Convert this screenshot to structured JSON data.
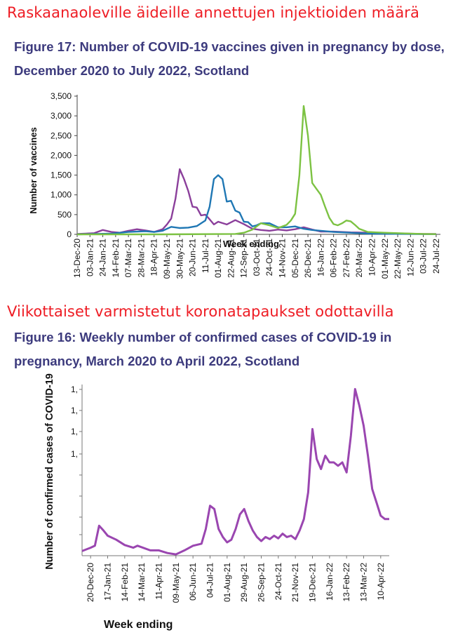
{
  "headings": {
    "top": "Raskaanaoleville äideille annettujen injektioiden määrä",
    "middle": "Viikottaiset varmistetut koronatapaukset odottavilla"
  },
  "chart_data": [
    {
      "type": "line",
      "title": "Figure 17: Number of COVID-19 vaccines given in pregnancy by dose, December 2020 to July 2022, Scotland",
      "xlabel": "Week ending",
      "ylabel": "Number of vaccines",
      "ylim": [
        0,
        3500
      ],
      "yticks": [
        "0",
        "500",
        "1,000",
        "1,500",
        "2,000",
        "2,500",
        "3,000",
        "3,500"
      ],
      "xlim": [
        "2020-12-13",
        "2022-07-31"
      ],
      "categories": [
        "13-Dec-20",
        "03-Jan-21",
        "24-Jan-21",
        "14-Feb-21",
        "07-Mar-21",
        "28-Mar-21",
        "18-Apr-21",
        "09-May-21",
        "30-May-21",
        "20-Jun-21",
        "11-Jul-21",
        "01-Aug-21",
        "22-Aug-21",
        "12-Sep-21",
        "03-Oct-21",
        "24-Oct-21",
        "14-Nov-21",
        "05-Dec-21",
        "26-Dec-21",
        "16-Jan-22",
        "06-Feb-22",
        "27-Feb-22",
        "20-Mar-22",
        "10-Apr-22",
        "01-May-22",
        "22-May-22",
        "12-Jun-22",
        "03-Jul-22",
        "24-Jul-22"
      ],
      "grid": false,
      "series": [
        {
          "color": "#8b3f9b",
          "x": [
            "2020-12-13",
            "2020-12-27",
            "2021-01-10",
            "2021-01-24",
            "2021-02-07",
            "2021-02-21",
            "2021-03-07",
            "2021-03-21",
            "2021-04-04",
            "2021-04-18",
            "2021-05-02",
            "2021-05-09",
            "2021-05-16",
            "2021-05-23",
            "2021-05-30",
            "2021-06-06",
            "2021-06-13",
            "2021-06-20",
            "2021-06-27",
            "2021-07-04",
            "2021-07-11",
            "2021-07-18",
            "2021-07-25",
            "2021-08-01",
            "2021-08-15",
            "2021-08-29",
            "2021-09-12",
            "2021-09-26",
            "2021-10-10",
            "2021-10-24",
            "2021-11-07",
            "2021-11-21",
            "2021-12-05",
            "2021-12-19",
            "2022-01-02",
            "2022-01-16",
            "2022-02-06",
            "2022-03-06",
            "2022-04-03",
            "2022-05-01",
            "2022-06-05",
            "2022-07-03",
            "2022-07-24"
          ],
          "values": [
            10,
            20,
            30,
            110,
            60,
            40,
            90,
            130,
            100,
            60,
            130,
            250,
            400,
            900,
            1650,
            1400,
            1100,
            700,
            680,
            480,
            500,
            380,
            250,
            320,
            250,
            360,
            260,
            140,
            110,
            90,
            120,
            100,
            130,
            180,
            120,
            70,
            70,
            50,
            40,
            30,
            20,
            10,
            10
          ]
        },
        {
          "color": "#1f77b4",
          "x": [
            "2020-12-13",
            "2021-01-10",
            "2021-02-07",
            "2021-03-07",
            "2021-04-04",
            "2021-04-18",
            "2021-05-02",
            "2021-05-16",
            "2021-05-30",
            "2021-06-13",
            "2021-06-27",
            "2021-07-11",
            "2021-07-18",
            "2021-07-25",
            "2021-08-01",
            "2021-08-08",
            "2021-08-15",
            "2021-08-22",
            "2021-08-29",
            "2021-09-05",
            "2021-09-12",
            "2021-09-19",
            "2021-09-26",
            "2021-10-03",
            "2021-10-10",
            "2021-10-24",
            "2021-11-07",
            "2021-11-21",
            "2021-12-05",
            "2021-12-19",
            "2022-01-02",
            "2022-01-16",
            "2022-02-06",
            "2022-03-06",
            "2022-04-03",
            "2022-05-01",
            "2022-06-05",
            "2022-07-03",
            "2022-07-24"
          ],
          "values": [
            0,
            10,
            20,
            60,
            80,
            60,
            90,
            190,
            160,
            170,
            210,
            350,
            700,
            1400,
            1500,
            1400,
            830,
            850,
            600,
            550,
            320,
            310,
            200,
            230,
            280,
            280,
            180,
            180,
            200,
            140,
            110,
            90,
            60,
            40,
            20,
            15,
            10,
            5,
            5
          ]
        },
        {
          "color": "#7cc242",
          "x": [
            "2020-12-13",
            "2021-05-02",
            "2021-08-29",
            "2021-09-12",
            "2021-09-26",
            "2021-10-10",
            "2021-10-24",
            "2021-11-07",
            "2021-11-21",
            "2021-11-28",
            "2021-12-05",
            "2021-12-12",
            "2021-12-19",
            "2021-12-26",
            "2022-01-02",
            "2022-01-09",
            "2022-01-16",
            "2022-01-23",
            "2022-01-30",
            "2022-02-06",
            "2022-02-13",
            "2022-02-20",
            "2022-02-27",
            "2022-03-06",
            "2022-03-13",
            "2022-03-20",
            "2022-03-27",
            "2022-04-03",
            "2022-04-17",
            "2022-05-01",
            "2022-05-22",
            "2022-06-12",
            "2022-07-03",
            "2022-07-24"
          ],
          "values": [
            0,
            0,
            10,
            40,
            120,
            280,
            230,
            160,
            240,
            350,
            520,
            1500,
            3250,
            2500,
            1300,
            1150,
            1000,
            700,
            420,
            260,
            230,
            280,
            350,
            330,
            240,
            140,
            100,
            60,
            50,
            40,
            30,
            20,
            10,
            5
          ]
        }
      ]
    },
    {
      "type": "line",
      "title": "Figure 16: Weekly number of confirmed cases of COVID-19 in pregnancy, March 2020 to April 2022, Scotland",
      "xlabel": "Week ending",
      "ylabel": "Number of confirmed cases of COVID-19",
      "yticks": [
        "1,",
        "1,",
        "1,",
        "1,"
      ],
      "categories": [
        "20-Dec-20",
        "17-Jan-21",
        "14-Feb-21",
        "14-Mar-21",
        "11-Apr-21",
        "09-May-21",
        "06-Jun-21",
        "04-Jul-21",
        "01-Aug-21",
        "29-Aug-21",
        "26-Sep-21",
        "24-Oct-21",
        "21-Nov-21",
        "19-Dec-21",
        "16-Jan-22",
        "13-Feb-22",
        "13-Mar-22",
        "10-Apr-22"
      ],
      "xlim": [
        "2020-12-06",
        "2022-04-24"
      ],
      "grid": false,
      "series": [
        {
          "color": "#9a46b0",
          "x": [
            "2020-12-06",
            "2020-12-20",
            "2020-12-27",
            "2021-01-03",
            "2021-01-10",
            "2021-01-17",
            "2021-01-31",
            "2021-02-14",
            "2021-02-28",
            "2021-03-07",
            "2021-03-28",
            "2021-04-11",
            "2021-04-25",
            "2021-05-09",
            "2021-05-23",
            "2021-06-06",
            "2021-06-20",
            "2021-06-27",
            "2021-07-04",
            "2021-07-11",
            "2021-07-18",
            "2021-07-25",
            "2021-08-01",
            "2021-08-08",
            "2021-08-15",
            "2021-08-22",
            "2021-08-29",
            "2021-09-05",
            "2021-09-12",
            "2021-09-19",
            "2021-09-26",
            "2021-10-03",
            "2021-10-10",
            "2021-10-17",
            "2021-10-24",
            "2021-10-31",
            "2021-11-07",
            "2021-11-14",
            "2021-11-21",
            "2021-11-28",
            "2021-12-05",
            "2021-12-12",
            "2021-12-19",
            "2021-12-26",
            "2022-01-02",
            "2022-01-09",
            "2022-01-16",
            "2022-01-23",
            "2022-01-30",
            "2022-02-06",
            "2022-02-13",
            "2022-02-20",
            "2022-02-27",
            "2022-03-06",
            "2022-03-13",
            "2022-03-20",
            "2022-03-27",
            "2022-04-03",
            "2022-04-10",
            "2022-04-17",
            "2022-04-24"
          ],
          "values": [
            7,
            12,
            15,
            45,
            38,
            30,
            24,
            16,
            12,
            15,
            8,
            8,
            4,
            2,
            8,
            15,
            18,
            40,
            75,
            70,
            40,
            28,
            20,
            24,
            40,
            62,
            70,
            52,
            38,
            28,
            22,
            28,
            25,
            30,
            26,
            33,
            28,
            30,
            25,
            38,
            55,
            95,
            190,
            145,
            130,
            150,
            140,
            140,
            135,
            140,
            125,
            180,
            250,
            225,
            195,
            150,
            100,
            80,
            60,
            55,
            55
          ]
        }
      ]
    }
  ]
}
